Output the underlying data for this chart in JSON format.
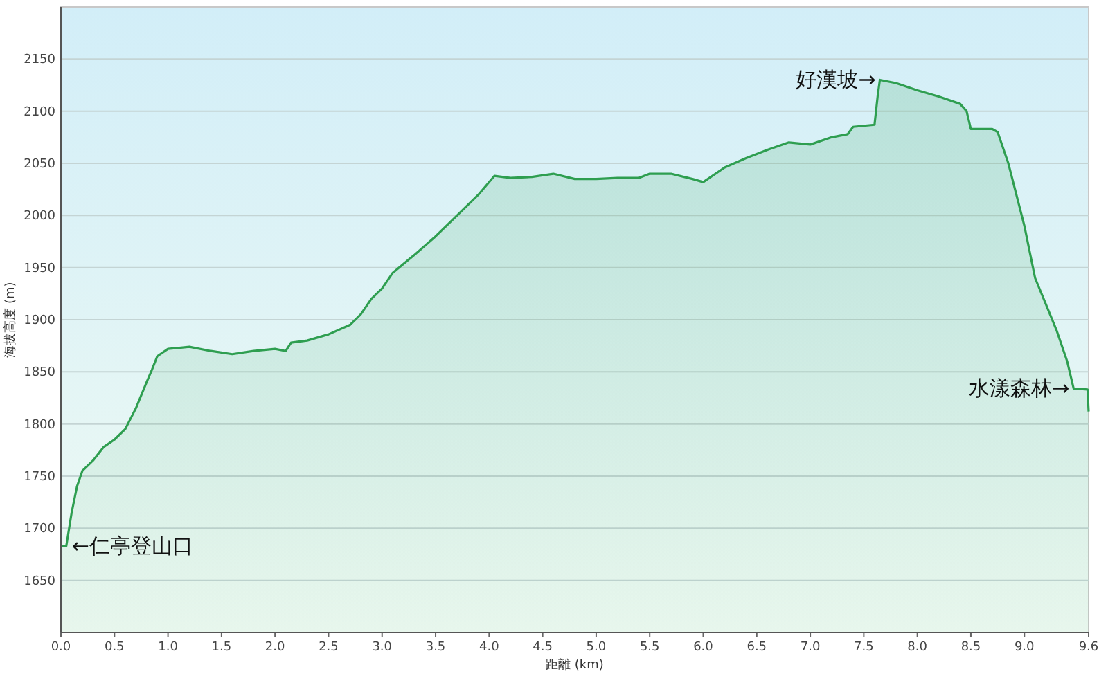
{
  "chart_data": {
    "type": "area",
    "xlabel": "距離 (km)",
    "ylabel": "海拔高度 (m)",
    "xlim": [
      0,
      9.6
    ],
    "ylim": [
      1600,
      2200
    ],
    "xticks": [
      {
        "value": 0,
        "label": "0.0"
      },
      0.5,
      {
        "value": 1,
        "label": "1.0"
      },
      1.5,
      {
        "value": 2,
        "label": "2.0"
      },
      2.5,
      {
        "value": 3,
        "label": "3.0"
      },
      3.5,
      {
        "value": 4,
        "label": "4.0"
      },
      4.5,
      {
        "value": 5,
        "label": "5.0"
      },
      5.5,
      {
        "value": 6,
        "label": "6.0"
      },
      6.5,
      {
        "value": 7,
        "label": "7.0"
      },
      7.5,
      {
        "value": 8,
        "label": "8.0"
      },
      8.5,
      {
        "value": 9,
        "label": "9.0"
      },
      9.6
    ],
    "yticks": [
      1650,
      1700,
      1750,
      1800,
      1850,
      1900,
      1950,
      2000,
      2050,
      2100,
      2150
    ],
    "grid": "y",
    "color": "#2e9e50",
    "x": [
      0,
      0.05,
      0.1,
      0.15,
      0.2,
      0.3,
      0.4,
      0.5,
      0.6,
      0.65,
      0.7,
      0.8,
      0.85,
      0.9,
      1.0,
      1.2,
      1.4,
      1.6,
      1.8,
      2.0,
      2.1,
      2.15,
      2.3,
      2.5,
      2.7,
      2.8,
      2.9,
      3.0,
      3.1,
      3.3,
      3.5,
      3.7,
      3.9,
      4.05,
      4.2,
      4.4,
      4.6,
      4.8,
      5.0,
      5.2,
      5.4,
      5.5,
      5.7,
      5.9,
      6.0,
      6.2,
      6.4,
      6.6,
      6.8,
      7.0,
      7.2,
      7.35,
      7.4,
      7.6,
      7.63,
      7.65,
      7.8,
      8.0,
      8.2,
      8.4,
      8.46,
      8.5,
      8.7,
      8.75,
      8.85,
      8.95,
      9.0,
      9.05,
      9.1,
      9.2,
      9.3,
      9.4,
      9.46,
      9.59,
      9.6
    ],
    "values": [
      1683,
      1683,
      1715,
      1740,
      1755,
      1765,
      1778,
      1785,
      1795,
      1805,
      1815,
      1840,
      1852,
      1865,
      1872,
      1874,
      1870,
      1867,
      1870,
      1872,
      1870,
      1878,
      1880,
      1886,
      1895,
      1905,
      1920,
      1930,
      1945,
      1962,
      1980,
      2000,
      2020,
      2038,
      2036,
      2037,
      2040,
      2035,
      2035,
      2036,
      2036,
      2040,
      2040,
      2035,
      2032,
      2046,
      2055,
      2063,
      2070,
      2068,
      2075,
      2078,
      2085,
      2087,
      2115,
      2130,
      2127,
      2120,
      2114,
      2107,
      2100,
      2083,
      2083,
      2080,
      2050,
      2010,
      1990,
      1965,
      1940,
      1915,
      1890,
      1860,
      1834,
      1833,
      1812
    ],
    "annotations": [
      {
        "text": "←仁亭登山口",
        "x": 0.05,
        "y": 1683
      },
      {
        "text": "好漢坡→",
        "x": 7.65,
        "y": 2130
      },
      {
        "text": "水漾森林→",
        "x": 9.46,
        "y": 1834
      }
    ]
  }
}
